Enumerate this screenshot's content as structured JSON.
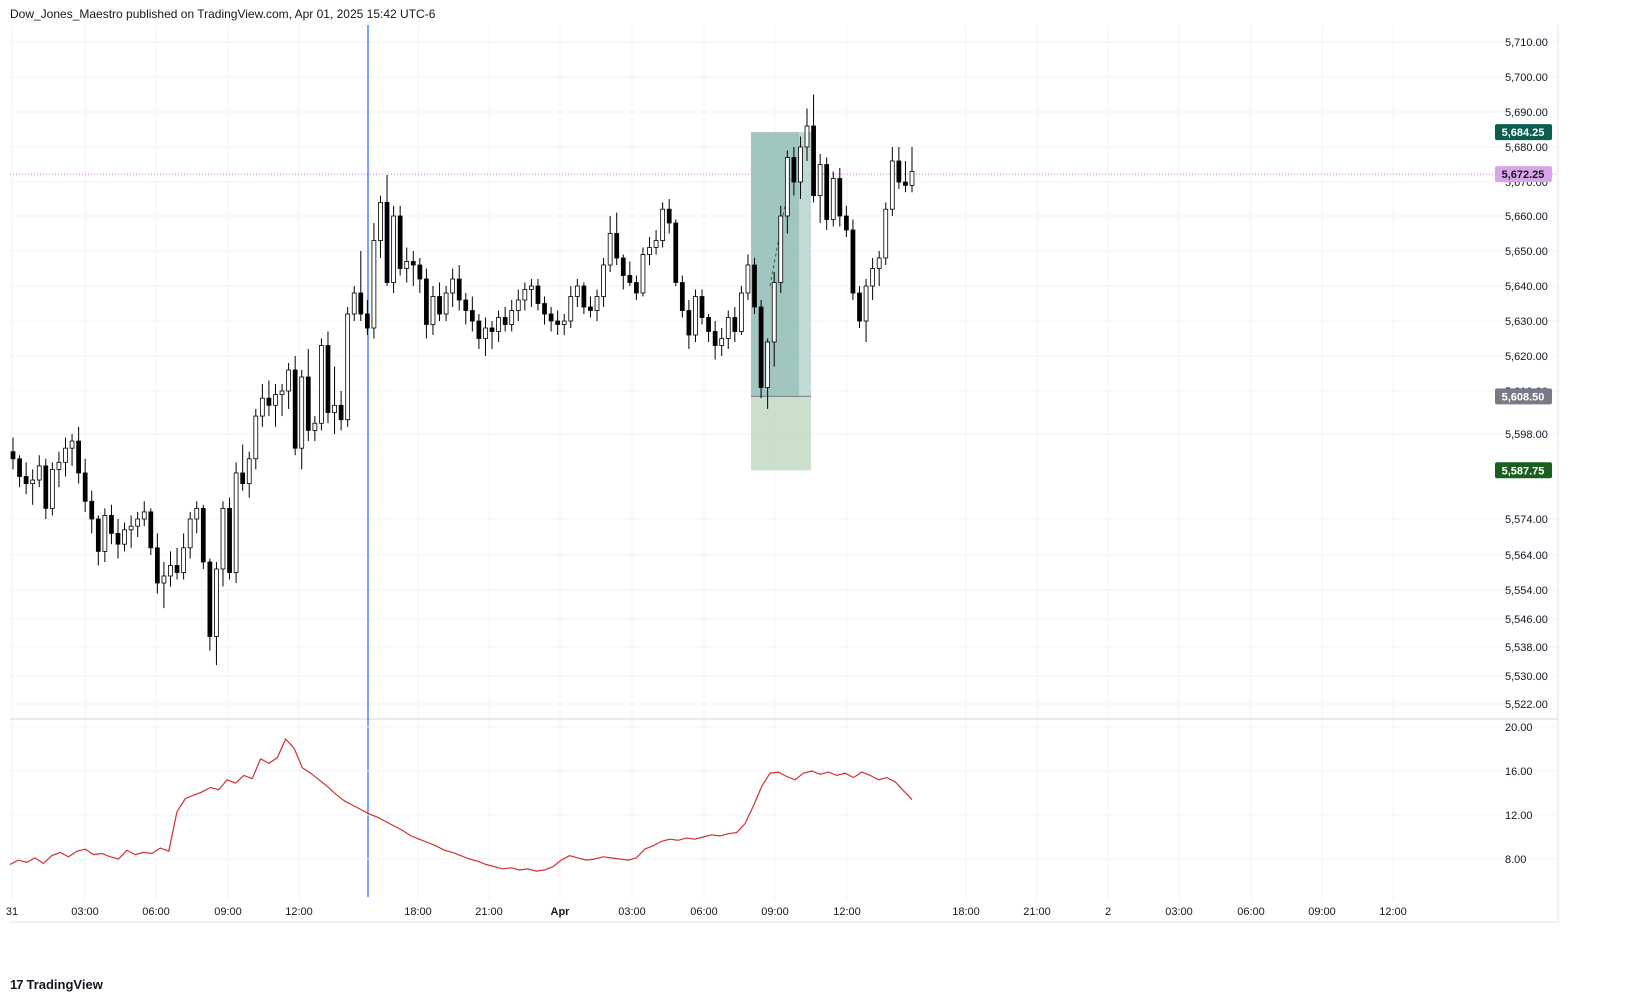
{
  "header": {
    "published_text": "Dow_Jones_Maestro published on TradingView.com, Apr 01, 2025 15:42 UTC-6"
  },
  "footer": {
    "logo_text": "TradingView",
    "logo_mark": "17"
  },
  "colors": {
    "up_body": "#ffffff",
    "down_body": "#000000",
    "wick": "#000000",
    "grid": "#f0f3fa",
    "vline": "#2962ff",
    "oscillator": "#d32f2f",
    "profit_zone": "#8fbcb4",
    "stop_zone": "#c5dbc8",
    "last_price_line": "#c678dd"
  },
  "chart_data": [
    {
      "type": "candlestick",
      "title": "",
      "y_ticks": [
        "5,710.00",
        "5,700.00",
        "5,690.00",
        "5,680.00",
        "5,670.00",
        "5,660.00",
        "5,650.00",
        "5,640.00",
        "5,630.00",
        "5,620.00",
        "5,610.00",
        "5,598.00",
        "5,574.00",
        "5,564.00",
        "5,554.00",
        "5,546.00",
        "5,538.00",
        "5,530.00",
        "5,522.00"
      ],
      "x_ticks": [
        "31",
        "03:00",
        "06:00",
        "09:00",
        "12:00",
        "18:00",
        "21:00",
        "Apr",
        "03:00",
        "06:00",
        "09:00",
        "12:00",
        "18:00",
        "21:00",
        "2",
        "03:00",
        "06:00",
        "09:00",
        "12:00"
      ],
      "price_labels": [
        {
          "text": "5,684.25",
          "value": 5684.25,
          "color": "#0b5d4e"
        },
        {
          "text": "5,672.25",
          "value": 5672.25,
          "color": "#d8a6e8"
        },
        {
          "text": "5,608.50",
          "value": 5608.5,
          "color": "#787b86"
        },
        {
          "text": "5,587.75",
          "value": 5587.75,
          "color": "#1b5e20"
        }
      ],
      "last_price": 5672.25,
      "position_tool": {
        "entry": 5608.5,
        "target": 5684.25,
        "stop": 5587.75
      },
      "ohlc": [
        [
          5593,
          5597,
          5588,
          5591
        ],
        [
          5591,
          5592,
          5583,
          5586
        ],
        [
          5586,
          5590,
          5581,
          5584
        ],
        [
          5584,
          5588,
          5578,
          5585
        ],
        [
          5585,
          5592,
          5583,
          5589
        ],
        [
          5589,
          5591,
          5574,
          5577
        ],
        [
          5577,
          5590,
          5575,
          5588
        ],
        [
          5588,
          5593,
          5583,
          5590
        ],
        [
          5590,
          5597,
          5586,
          5594
        ],
        [
          5594,
          5598,
          5589,
          5596
        ],
        [
          5596,
          5600,
          5584,
          5587
        ],
        [
          5587,
          5591,
          5576,
          5579
        ],
        [
          5579,
          5582,
          5570,
          5574
        ],
        [
          5574,
          5575,
          5561,
          5565
        ],
        [
          5565,
          5577,
          5562,
          5575
        ],
        [
          5575,
          5578,
          5567,
          5570
        ],
        [
          5570,
          5574,
          5563,
          5567
        ],
        [
          5567,
          5573,
          5565,
          5571
        ],
        [
          5571,
          5575,
          5566,
          5572
        ],
        [
          5572,
          5576,
          5569,
          5574
        ],
        [
          5574,
          5579,
          5572,
          5576
        ],
        [
          5576,
          5577,
          5564,
          5566
        ],
        [
          5566,
          5570,
          5553,
          5556
        ],
        [
          5556,
          5562,
          5549,
          5558
        ],
        [
          5558,
          5565,
          5555,
          5561
        ],
        [
          5561,
          5566,
          5557,
          5559
        ],
        [
          5559,
          5570,
          5557,
          5566
        ],
        [
          5566,
          5576,
          5563,
          5574
        ],
        [
          5574,
          5579,
          5570,
          5577
        ],
        [
          5577,
          5578,
          5560,
          5562
        ],
        [
          5562,
          5563,
          5537,
          5541
        ],
        [
          5541,
          5562,
          5533,
          5560
        ],
        [
          5560,
          5579,
          5555,
          5577
        ],
        [
          5577,
          5580,
          5557,
          5559
        ],
        [
          5559,
          5590,
          5556,
          5587
        ],
        [
          5587,
          5595,
          5582,
          5584
        ],
        [
          5584,
          5593,
          5580,
          5591
        ],
        [
          5591,
          5605,
          5588,
          5603
        ],
        [
          5603,
          5612,
          5600,
          5608
        ],
        [
          5608,
          5613,
          5603,
          5606
        ],
        [
          5606,
          5612,
          5600,
          5609
        ],
        [
          5609,
          5612,
          5603,
          5610
        ],
        [
          5610,
          5618,
          5605,
          5616
        ],
        [
          5616,
          5620,
          5592,
          5594
        ],
        [
          5594,
          5616,
          5588,
          5614
        ],
        [
          5614,
          5622,
          5596,
          5599
        ],
        [
          5599,
          5603,
          5596,
          5601
        ],
        [
          5601,
          5625,
          5599,
          5623
        ],
        [
          5623,
          5627,
          5601,
          5604
        ],
        [
          5604,
          5617,
          5598,
          5606
        ],
        [
          5606,
          5610,
          5599,
          5602
        ],
        [
          5602,
          5634,
          5600,
          5632
        ],
        [
          5632,
          5640,
          5630,
          5638
        ],
        [
          5638,
          5650,
          5630,
          5632
        ],
        [
          5632,
          5636,
          5626,
          5628
        ],
        [
          5628,
          5658,
          5625,
          5653
        ],
        [
          5653,
          5666,
          5648,
          5664
        ],
        [
          5664,
          5672,
          5640,
          5641
        ],
        [
          5641,
          5663,
          5638,
          5660
        ],
        [
          5660,
          5663,
          5643,
          5645
        ],
        [
          5645,
          5651,
          5641,
          5647
        ],
        [
          5647,
          5650,
          5640,
          5646
        ],
        [
          5646,
          5648,
          5638,
          5642
        ],
        [
          5642,
          5645,
          5625,
          5629
        ],
        [
          5629,
          5640,
          5626,
          5637
        ],
        [
          5637,
          5641,
          5630,
          5632
        ],
        [
          5632,
          5640,
          5630,
          5638
        ],
        [
          5638,
          5645,
          5634,
          5642
        ],
        [
          5642,
          5646,
          5633,
          5636
        ],
        [
          5636,
          5638,
          5629,
          5633
        ],
        [
          5633,
          5637,
          5627,
          5630
        ],
        [
          5630,
          5632,
          5622,
          5625
        ],
        [
          5625,
          5631,
          5620,
          5628
        ],
        [
          5628,
          5630,
          5622,
          5627
        ],
        [
          5627,
          5633,
          5624,
          5631
        ],
        [
          5631,
          5634,
          5627,
          5629
        ],
        [
          5629,
          5636,
          5627,
          5633
        ],
        [
          5633,
          5639,
          5630,
          5636
        ],
        [
          5636,
          5641,
          5633,
          5639
        ],
        [
          5639,
          5642,
          5634,
          5640
        ],
        [
          5640,
          5642,
          5633,
          5635
        ],
        [
          5635,
          5637,
          5629,
          5632
        ],
        [
          5632,
          5634,
          5627,
          5630
        ],
        [
          5630,
          5633,
          5626,
          5629
        ],
        [
          5629,
          5632,
          5626,
          5630
        ],
        [
          5630,
          5640,
          5628,
          5637
        ],
        [
          5637,
          5642,
          5634,
          5640
        ],
        [
          5640,
          5641,
          5632,
          5634
        ],
        [
          5634,
          5637,
          5631,
          5633
        ],
        [
          5633,
          5639,
          5630,
          5637
        ],
        [
          5637,
          5648,
          5634,
          5646
        ],
        [
          5646,
          5660,
          5644,
          5655
        ],
        [
          5655,
          5661,
          5646,
          5648
        ],
        [
          5648,
          5649,
          5639,
          5643
        ],
        [
          5643,
          5647,
          5640,
          5641
        ],
        [
          5641,
          5643,
          5636,
          5638
        ],
        [
          5638,
          5651,
          5637,
          5649
        ],
        [
          5649,
          5654,
          5646,
          5651
        ],
        [
          5651,
          5656,
          5649,
          5653
        ],
        [
          5653,
          5664,
          5651,
          5662
        ],
        [
          5662,
          5665,
          5655,
          5658
        ],
        [
          5658,
          5659,
          5640,
          5641
        ],
        [
          5641,
          5643,
          5631,
          5633
        ],
        [
          5633,
          5636,
          5622,
          5626
        ],
        [
          5626,
          5639,
          5624,
          5637
        ],
        [
          5637,
          5639,
          5629,
          5631
        ],
        [
          5631,
          5632,
          5624,
          5627
        ],
        [
          5627,
          5630,
          5619,
          5623
        ],
        [
          5623,
          5628,
          5620,
          5625
        ],
        [
          5625,
          5633,
          5622,
          5631
        ],
        [
          5631,
          5634,
          5624,
          5627
        ],
        [
          5627,
          5640,
          5626,
          5638
        ],
        [
          5638,
          5649,
          5636,
          5646
        ],
        [
          5646,
          5648,
          5632,
          5634
        ],
        [
          5634,
          5636,
          5608,
          5611
        ],
        [
          5611,
          5625,
          5605,
          5624
        ],
        [
          5624,
          5644,
          5617,
          5641
        ],
        [
          5641,
          5663,
          5638,
          5660
        ],
        [
          5660,
          5679,
          5655,
          5677
        ],
        [
          5677,
          5680,
          5666,
          5670
        ],
        [
          5670,
          5683,
          5665,
          5680
        ],
        [
          5680,
          5691,
          5676,
          5686
        ],
        [
          5686,
          5695,
          5664,
          5666
        ],
        [
          5666,
          5678,
          5658,
          5675
        ],
        [
          5675,
          5677,
          5656,
          5659
        ],
        [
          5659,
          5673,
          5657,
          5671
        ],
        [
          5671,
          5674,
          5657,
          5660
        ],
        [
          5660,
          5663,
          5654,
          5656
        ],
        [
          5656,
          5659,
          5636,
          5638
        ],
        [
          5638,
          5640,
          5628,
          5630
        ],
        [
          5630,
          5642,
          5624,
          5640
        ],
        [
          5640,
          5648,
          5636,
          5645
        ],
        [
          5645,
          5650,
          5640,
          5648
        ],
        [
          5648,
          5664,
          5646,
          5662
        ],
        [
          5662,
          5680,
          5660,
          5676
        ],
        [
          5676,
          5680,
          5668,
          5670
        ],
        [
          5670,
          5676,
          5667,
          5669
        ],
        [
          5669,
          5680,
          5667,
          5673
        ]
      ],
      "vertical_line_index": 51
    },
    {
      "type": "line",
      "title": "",
      "y_ticks": [
        "20.00",
        "16.00",
        "12.00",
        "8.00"
      ],
      "ylim": [
        5,
        21
      ],
      "series": [
        {
          "values": [
            7.5,
            7.9,
            7.7,
            8.1,
            7.6,
            8.3,
            8.6,
            8.2,
            8.7,
            8.9,
            8.4,
            8.5,
            8.2,
            8.0,
            8.8,
            8.4,
            8.6,
            8.5,
            9.0,
            8.7,
            12.3,
            13.5,
            13.8,
            14.1,
            14.5,
            14.3,
            15.2,
            14.9,
            15.6,
            15.3,
            17.1,
            16.7,
            17.2,
            18.9,
            18.1,
            16.3,
            15.8,
            15.2,
            14.6,
            13.9,
            13.3,
            12.9,
            12.5,
            12.1,
            11.8,
            11.4,
            11.0,
            10.6,
            10.1,
            9.8,
            9.5,
            9.2,
            8.8,
            8.6,
            8.3,
            8.0,
            7.8,
            7.5,
            7.3,
            7.1,
            7.2,
            7.0,
            7.1,
            6.9,
            7.0,
            7.3,
            7.9,
            8.3,
            8.1,
            7.9,
            8.0,
            8.2,
            8.1,
            8.0,
            7.9,
            8.1,
            8.9,
            9.2,
            9.6,
            9.8,
            9.7,
            9.9,
            9.8,
            10.0,
            10.2,
            10.1,
            10.3,
            10.4,
            11.2,
            12.8,
            14.6,
            15.8,
            15.9,
            15.5,
            15.2,
            15.8,
            16.0,
            15.7,
            15.9,
            15.6,
            15.8,
            15.4,
            15.9,
            15.6,
            15.2,
            15.4,
            15.0,
            14.2,
            13.4
          ]
        }
      ]
    }
  ]
}
